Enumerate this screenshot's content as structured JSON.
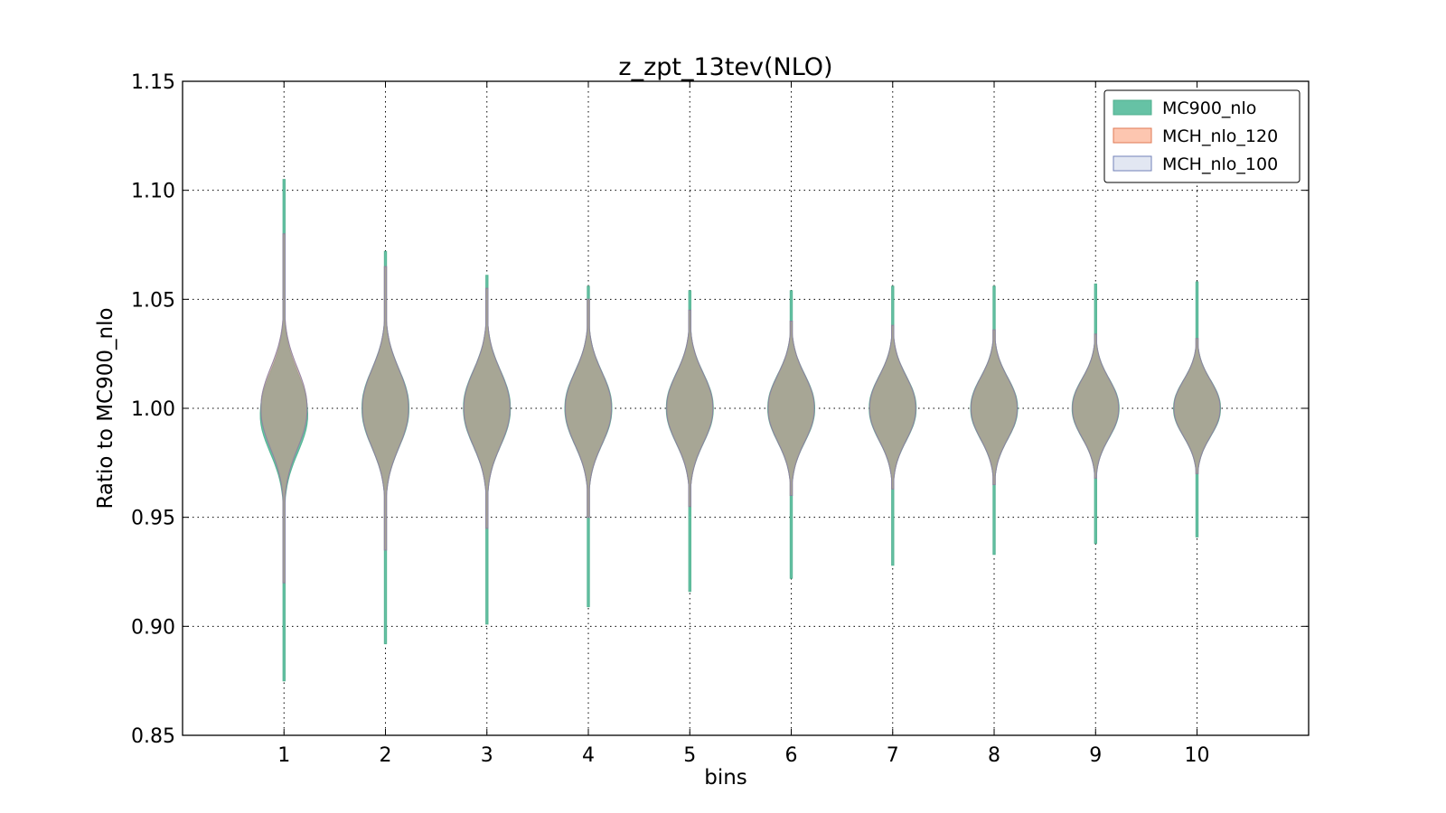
{
  "chart_data": {
    "type": "violin",
    "title": "z_zpt_13tev(NLO)",
    "xlabel": "bins",
    "ylabel": "Ratio to MC900_nlo",
    "ylim": [
      0.85,
      1.15
    ],
    "xlim": [
      0,
      11.1
    ],
    "yticks": [
      "0.85",
      "0.90",
      "0.95",
      "1.00",
      "1.05",
      "1.10",
      "1.15"
    ],
    "categories": [
      "1",
      "2",
      "3",
      "4",
      "5",
      "6",
      "7",
      "8",
      "9",
      "10"
    ],
    "grid": true,
    "legend_position": "top-right",
    "series": [
      {
        "name": "MC900_nlo",
        "color": "#66c2a5",
        "opacity": 1.0,
        "min": [
          0.875,
          0.892,
          0.901,
          0.909,
          0.916,
          0.922,
          0.928,
          0.933,
          0.938,
          0.941
        ],
        "max": [
          1.105,
          1.072,
          1.061,
          1.056,
          1.054,
          1.054,
          1.056,
          1.056,
          1.057,
          1.058
        ]
      },
      {
        "name": "MCH_nlo_120",
        "color": "#fc8d62",
        "opacity": 0.5,
        "min": [
          0.92,
          0.935,
          0.945,
          0.95,
          0.955,
          0.96,
          0.963,
          0.965,
          0.968,
          0.97
        ],
        "max": [
          1.08,
          1.065,
          1.055,
          1.05,
          1.045,
          1.04,
          1.038,
          1.036,
          1.034,
          1.032
        ]
      },
      {
        "name": "MCH_nlo_100",
        "color": "#8da0cb",
        "opacity": 0.25,
        "min": [
          0.92,
          0.935,
          0.945,
          0.95,
          0.955,
          0.96,
          0.963,
          0.965,
          0.968,
          0.97
        ],
        "max": [
          1.08,
          1.065,
          1.055,
          1.05,
          1.045,
          1.04,
          1.038,
          1.036,
          1.034,
          1.032
        ]
      }
    ]
  }
}
